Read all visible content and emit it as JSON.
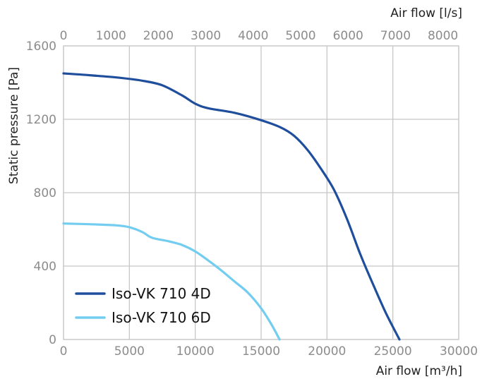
{
  "chart_data": {
    "type": "line",
    "title": "",
    "xlabel_bottom": "Air flow [m³/h]",
    "xlabel_top": "Air flow [l/s]",
    "ylabel": "Static pressure [Pa]",
    "xlim": [
      0,
      30000
    ],
    "ylim": [
      0,
      1600
    ],
    "xticks": [
      "0",
      "5000",
      "10000",
      "15000",
      "20000",
      "25000",
      "30000"
    ],
    "xticks_top": [
      "0",
      "1000",
      "2000",
      "3000",
      "4000",
      "5000",
      "6000",
      "7000",
      "8000"
    ],
    "yticks": [
      "0",
      "400",
      "800",
      "1200",
      "1600"
    ],
    "grid": true,
    "legend_position": "bottom-left",
    "series": [
      {
        "name": "Iso-VK 710 4D",
        "color": "#1f4e9c",
        "x": [
          0,
          2000,
          4000,
          6000,
          7500,
          9000,
          10000,
          11000,
          13000,
          15000,
          16500,
          17500,
          18500,
          19500,
          20500,
          21500,
          22500,
          23500,
          24500,
          25500
        ],
        "y": [
          1450,
          1440,
          1428,
          1410,
          1385,
          1330,
          1285,
          1260,
          1235,
          1195,
          1155,
          1110,
          1035,
          935,
          820,
          660,
          470,
          300,
          140,
          0
        ]
      },
      {
        "name": "Iso-VK 710 6D",
        "color": "#72cdf0",
        "x": [
          0,
          2000,
          4000,
          5000,
          6000,
          6700,
          8000,
          9000,
          10000,
          11000,
          12000,
          13000,
          14000,
          15000,
          15800,
          16400
        ],
        "y": [
          632,
          628,
          622,
          612,
          585,
          555,
          535,
          515,
          480,
          430,
          375,
          315,
          255,
          170,
          80,
          0
        ]
      }
    ]
  }
}
